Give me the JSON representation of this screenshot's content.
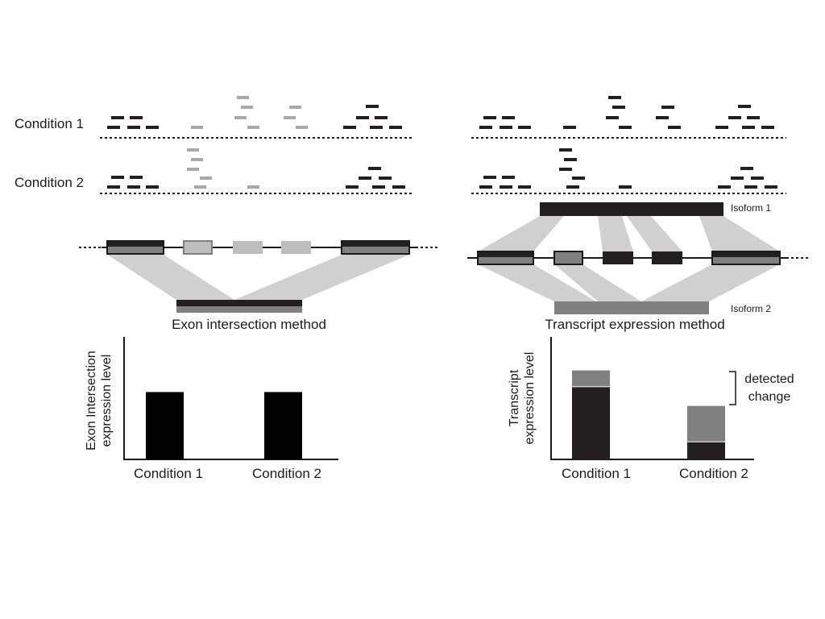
{
  "colors": {
    "dark": "#231f20",
    "mid": "#808080",
    "light": "#a8a8a8",
    "shade": "#d0d0d0",
    "line": "#1a1a1a"
  },
  "labels": {
    "condition1": "Condition 1",
    "condition2": "Condition 2",
    "isoform1": "Isoform 1",
    "isoform2": "Isoform 2",
    "exon_title": "Exon intersection method",
    "transcript_title": "Transcript expression method",
    "exon_ylabel_line1": "Exon Intersection",
    "exon_ylabel_line2": "expression level",
    "transcript_ylabel_line1": "Transcript",
    "transcript_ylabel_line2": "expression level",
    "detected_line1": "detected",
    "detected_line2": "change"
  },
  "chart_data": [
    {
      "type": "bar",
      "categories": [
        "Condition 1",
        "Condition 2"
      ],
      "values": [
        0.55,
        0.55
      ],
      "ylabel": "Exon Intersection expression level",
      "ylim": [
        0,
        1
      ]
    },
    {
      "type": "bar",
      "stacked": true,
      "categories": [
        "Condition 1",
        "Condition 2"
      ],
      "series": [
        {
          "values": [
            0.59,
            0.14
          ]
        },
        {
          "values": [
            0.13,
            0.29
          ]
        }
      ],
      "ylabel": "Transcript expression level",
      "ylim": [
        0,
        1
      ],
      "annotation": "detected change"
    }
  ]
}
